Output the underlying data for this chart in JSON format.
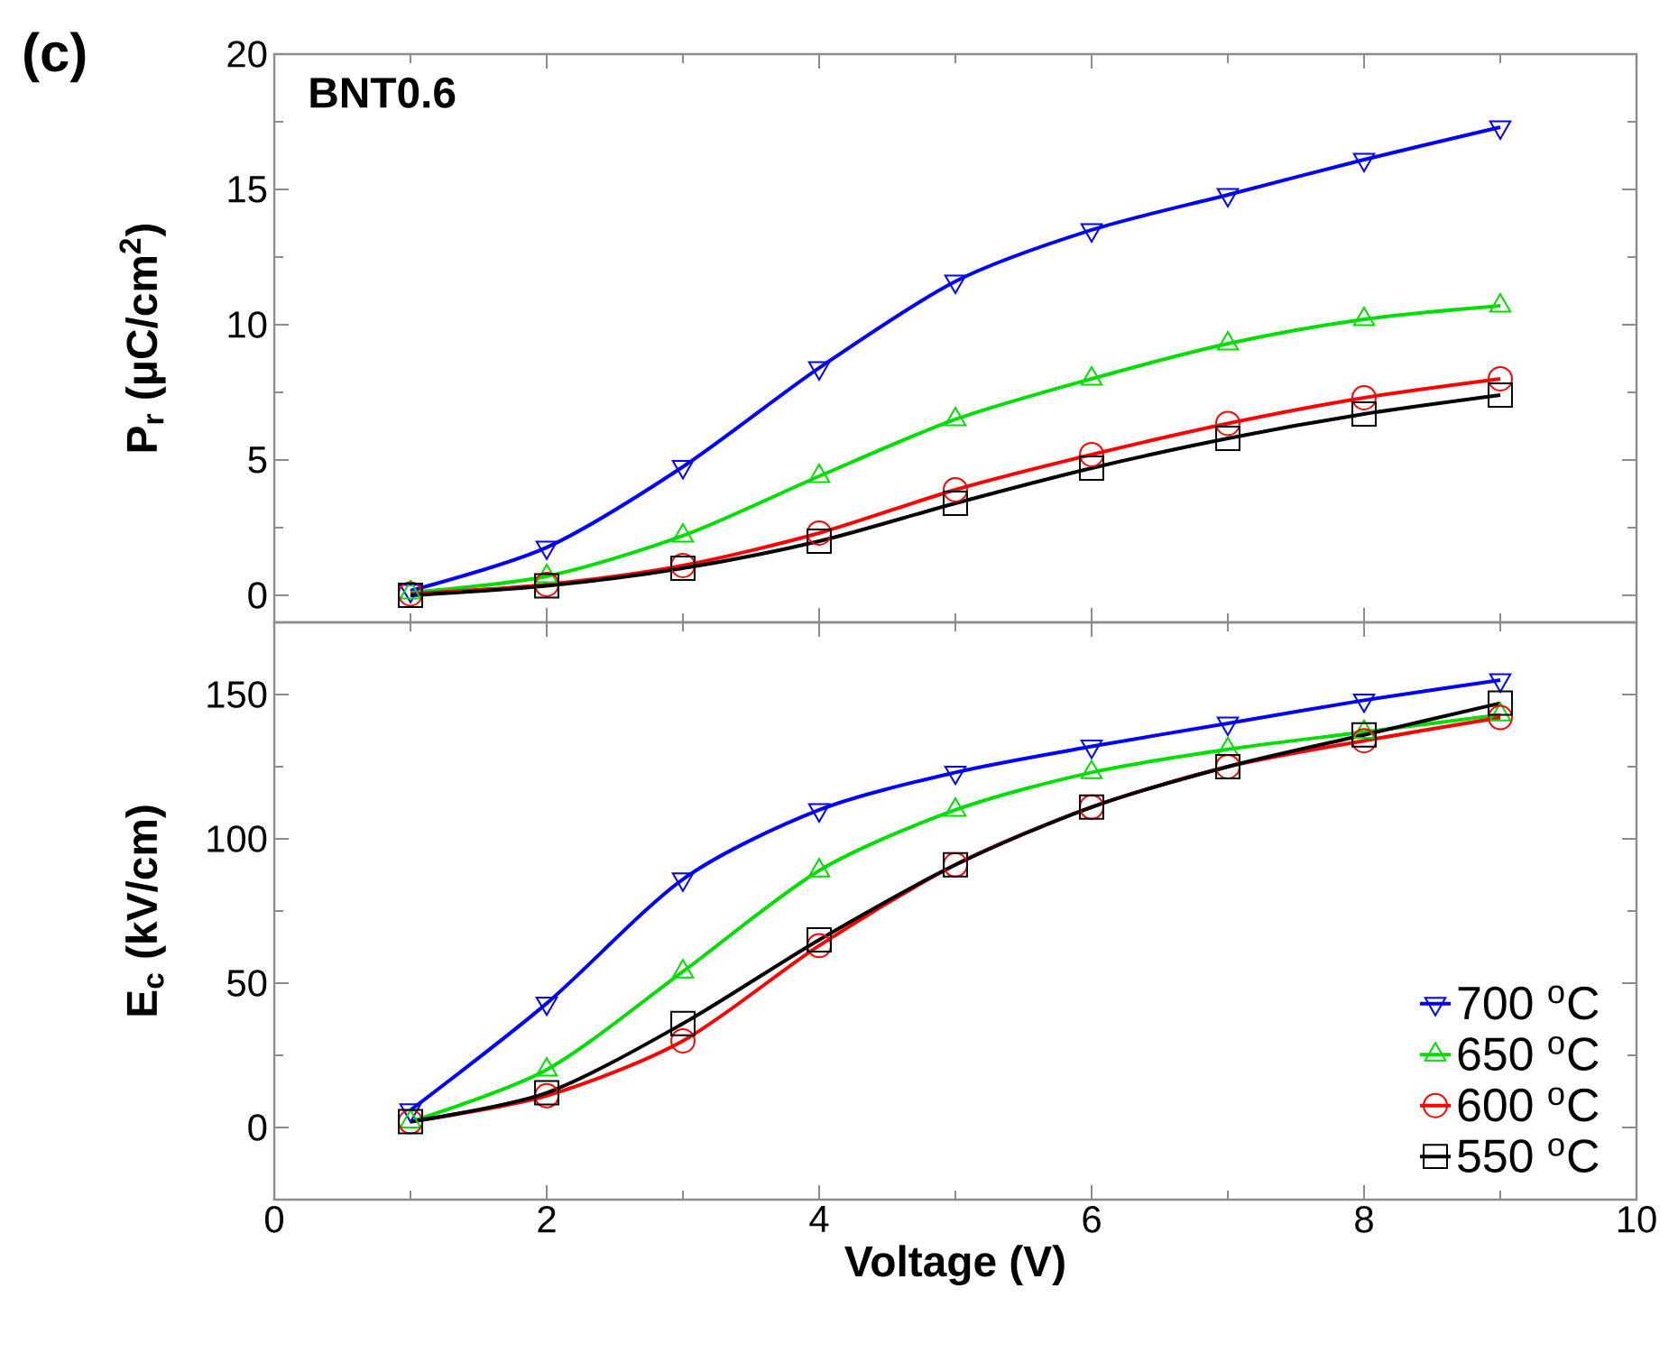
{
  "chart_data": [
    {
      "type": "line",
      "ylabel": "P$_{r}$ (μC/cm$^{2}$)",
      "annotations": [
        "(c)",
        "BNT0.6"
      ],
      "x": [
        1,
        2,
        3,
        4,
        5,
        6,
        7,
        8,
        9
      ],
      "xlim": [
        0,
        10
      ],
      "xticks": [
        0,
        2,
        4,
        6,
        8,
        10
      ],
      "ylim": [
        -1,
        20
      ],
      "yticks": [
        0,
        5,
        10,
        15,
        20
      ],
      "tick_labels": "y",
      "grid": false,
      "legend": false,
      "series": [
        {
          "color": "#0000ff",
          "marker": "triangle-down",
          "values": [
            0.17,
            1.77,
            4.75,
            8.4,
            11.6,
            13.5,
            14.8,
            16.1,
            17.3
          ]
        },
        {
          "color": "#00dd00",
          "marker": "triangle",
          "values": [
            0.1,
            0.7,
            2.2,
            4.4,
            6.5,
            8.0,
            9.3,
            10.2,
            10.7
          ]
        },
        {
          "color": "#ff0000",
          "marker": "circle",
          "values": [
            0.05,
            0.4,
            1.1,
            2.3,
            3.9,
            5.2,
            6.35,
            7.3,
            8.0
          ]
        },
        {
          "color": "#000000",
          "marker": "square",
          "values": [
            0.0,
            0.35,
            1.0,
            2.0,
            3.4,
            4.7,
            5.8,
            6.7,
            7.4
          ]
        }
      ]
    },
    {
      "type": "line",
      "xlabel": "Voltage (V)",
      "ylabel": "E$_{c}$ (kV/cm)",
      "x": [
        1,
        2,
        3,
        4,
        5,
        6,
        7,
        8,
        9
      ],
      "xlim": [
        0,
        10
      ],
      "xticks": [
        0,
        2,
        4,
        6,
        8,
        10
      ],
      "ylim": [
        -25,
        175
      ],
      "yticks": [
        0,
        50,
        100,
        150
      ],
      "grid": false,
      "legend": "bottom right",
      "series": [
        {
          "name": "700 $^{o}$C",
          "color": "#0000ff",
          "marker": "triangle-down",
          "values": [
            6,
            43,
            86,
            110,
            123,
            132,
            140,
            148,
            155
          ]
        },
        {
          "name": "650 $^{o}$C",
          "color": "#00dd00",
          "marker": "triangle",
          "values": [
            2,
            20,
            54,
            89,
            110,
            123,
            131,
            137,
            143
          ]
        },
        {
          "name": "600 $^{o}$C",
          "color": "#ff0000",
          "marker": "circle",
          "values": [
            2,
            11,
            30,
            63,
            91,
            111,
            125,
            134,
            142
          ]
        },
        {
          "name": "550 $^{o}$C",
          "color": "#000000",
          "marker": "square",
          "values": [
            2,
            12,
            36,
            65,
            91,
            111,
            125,
            136,
            147
          ]
        }
      ]
    }
  ]
}
